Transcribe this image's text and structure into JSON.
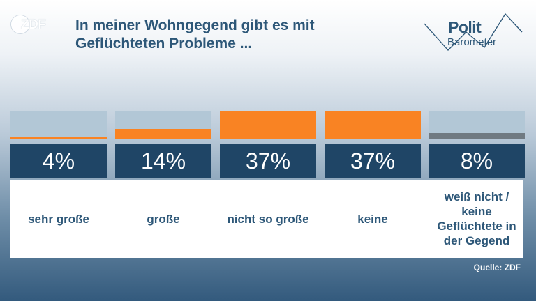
{
  "brand": {
    "logo_text": "ZDF",
    "polit_line1": "Polit",
    "polit_line2": "Barometer"
  },
  "source": "Quelle: ZDF",
  "colors": {
    "accent": "#f98323",
    "neutral": "#707a82",
    "dark_box": "#1f4566",
    "track": "#b2c7d6",
    "title": "#2d5778"
  },
  "chart_data": {
    "type": "bar",
    "title": "In meiner Wohngegend gibt es mit Geflüchteten Probleme ...",
    "categories": [
      "sehr große",
      "große",
      "nicht so große",
      "keine",
      "weiß nicht / keine Geflüchtete in der Gegend"
    ],
    "values": [
      4,
      14,
      37,
      37,
      8
    ],
    "value_labels": [
      "4%",
      "14%",
      "37%",
      "37%",
      "8%"
    ],
    "ylim": [
      0,
      37
    ],
    "bar_colors": [
      "#f98323",
      "#f98323",
      "#f98323",
      "#f98323",
      "#707a82"
    ],
    "grid": false
  }
}
